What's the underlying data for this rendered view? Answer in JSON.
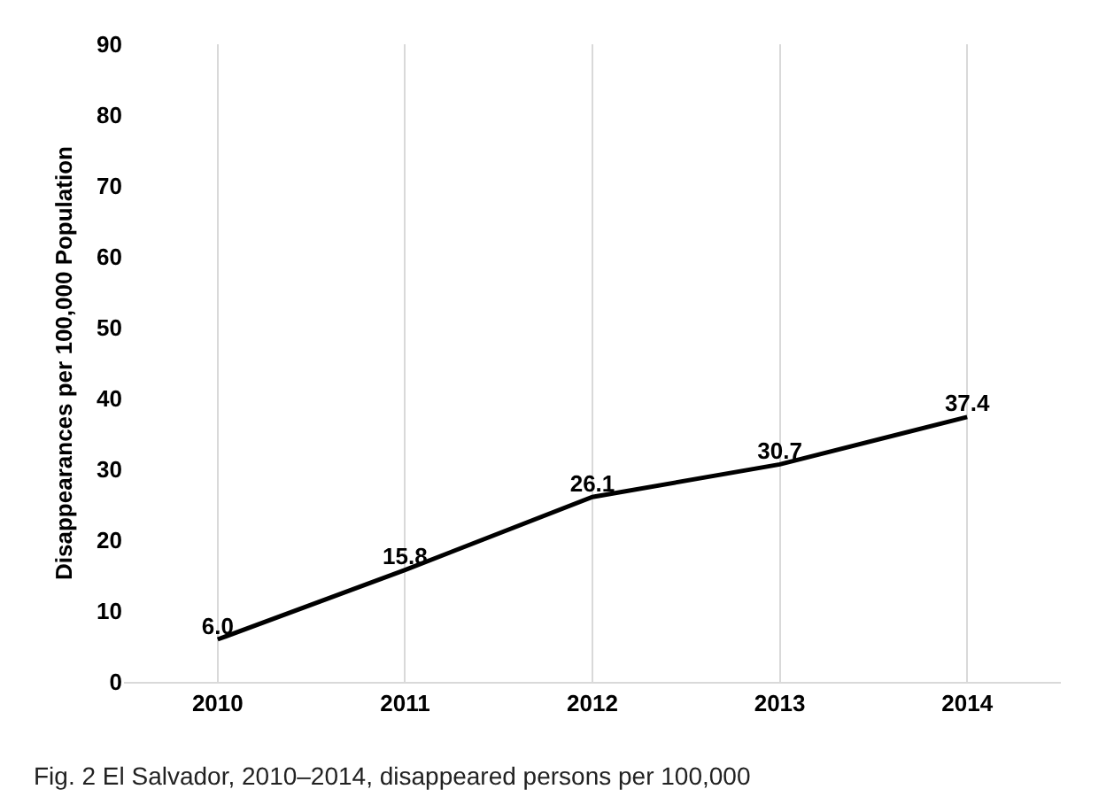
{
  "chart_data": {
    "type": "line",
    "categories": [
      "2010",
      "2011",
      "2012",
      "2013",
      "2014"
    ],
    "series": [
      {
        "color": "#000000",
        "values": [
          6.0,
          15.8,
          26.1,
          30.7,
          37.4
        ],
        "value_labels": [
          "6.0",
          "15.8",
          "26.1",
          "30.7",
          "37.4"
        ]
      }
    ],
    "ylabel": "Disappearances per 100,000 Population",
    "ylim": [
      0,
      90
    ],
    "yticks": [
      0,
      10,
      20,
      30,
      40,
      50,
      60,
      70,
      80,
      90
    ],
    "grid": "x",
    "legend": false,
    "marker": "none",
    "line_style": "solid",
    "annotations": [
      "Fig. 2 El Salvador, 2010–2014, disappeared persons per 100,000"
    ]
  }
}
